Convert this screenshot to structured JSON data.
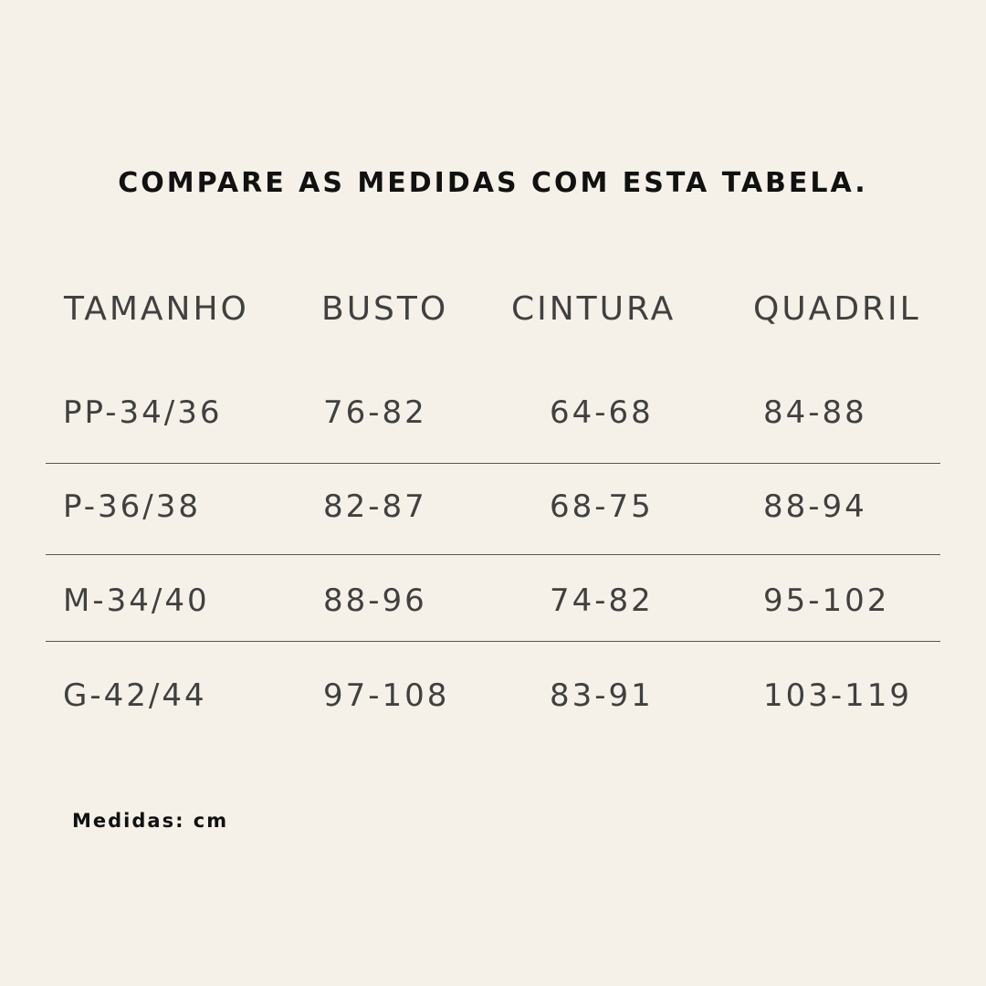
{
  "title": "COMPARE AS MEDIDAS COM ESTA TABELA.",
  "table": {
    "headers": [
      "TAMANHO",
      "BUSTO",
      "CINTURA",
      "QUADRIL"
    ],
    "rows": [
      [
        "PP-34/36",
        "76-82",
        "64-68",
        "84-88"
      ],
      [
        "P-36/38",
        "82-87",
        "68-75",
        "88-94"
      ],
      [
        "M-34/40",
        "88-96",
        "74-82",
        "95-102"
      ],
      [
        "G-42/44",
        "97-108",
        "83-91",
        "103-119"
      ]
    ]
  },
  "footer": "Medidas: cm"
}
